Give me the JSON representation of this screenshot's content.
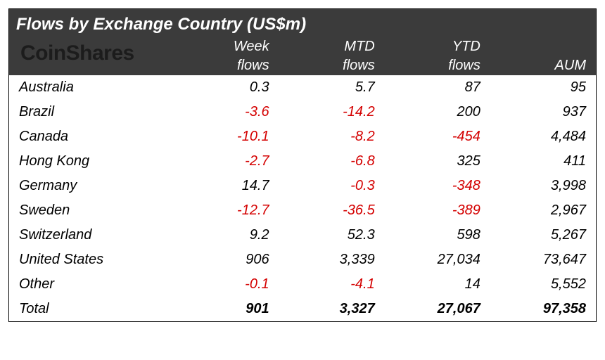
{
  "title": "Flows by Exchange Country (US$m)",
  "brand": "CoinShares",
  "type": "table",
  "colors": {
    "header_bg": "#3b3b3b",
    "header_text": "#ffffff",
    "brand_text": "#1c1c1c",
    "body_text": "#000000",
    "negative": "#d40000",
    "background": "#ffffff",
    "border": "#000000"
  },
  "typography": {
    "title_fontsize_pt": 18,
    "header_fontsize_pt": 15,
    "body_fontsize_pt": 15,
    "brand_fontsize_pt": 22,
    "font_style": "italic",
    "total_font_weight": "bold"
  },
  "columns": [
    {
      "label": "",
      "align": "left",
      "width_pct": 28
    },
    {
      "label_line1": "Week",
      "label_line2": "flows",
      "align": "right",
      "width_pct": 18
    },
    {
      "label_line1": "MTD",
      "label_line2": "flows",
      "align": "right",
      "width_pct": 18
    },
    {
      "label_line1": "YTD",
      "label_line2": "flows",
      "align": "right",
      "width_pct": 18
    },
    {
      "label_line1": "",
      "label_line2": "AUM",
      "align": "right",
      "width_pct": 18
    }
  ],
  "rows": [
    {
      "label": "Australia",
      "week": "0.3",
      "week_neg": false,
      "mtd": "5.7",
      "mtd_neg": false,
      "ytd": "87",
      "ytd_neg": false,
      "aum": "95"
    },
    {
      "label": "Brazil",
      "week": "-3.6",
      "week_neg": true,
      "mtd": "-14.2",
      "mtd_neg": true,
      "ytd": "200",
      "ytd_neg": false,
      "aum": "937"
    },
    {
      "label": "Canada",
      "week": "-10.1",
      "week_neg": true,
      "mtd": "-8.2",
      "mtd_neg": true,
      "ytd": "-454",
      "ytd_neg": true,
      "aum": "4,484"
    },
    {
      "label": "Hong Kong",
      "week": "-2.7",
      "week_neg": true,
      "mtd": "-6.8",
      "mtd_neg": true,
      "ytd": "325",
      "ytd_neg": false,
      "aum": "411"
    },
    {
      "label": "Germany",
      "week": "14.7",
      "week_neg": false,
      "mtd": "-0.3",
      "mtd_neg": true,
      "ytd": "-348",
      "ytd_neg": true,
      "aum": "3,998"
    },
    {
      "label": "Sweden",
      "week": "-12.7",
      "week_neg": true,
      "mtd": "-36.5",
      "mtd_neg": true,
      "ytd": "-389",
      "ytd_neg": true,
      "aum": "2,967"
    },
    {
      "label": "Switzerland",
      "week": "9.2",
      "week_neg": false,
      "mtd": "52.3",
      "mtd_neg": false,
      "ytd": "598",
      "ytd_neg": false,
      "aum": "5,267"
    },
    {
      "label": "United States",
      "week": "906",
      "week_neg": false,
      "mtd": "3,339",
      "mtd_neg": false,
      "ytd": "27,034",
      "ytd_neg": false,
      "aum": "73,647"
    },
    {
      "label": "Other",
      "week": "-0.1",
      "week_neg": true,
      "mtd": "-4.1",
      "mtd_neg": true,
      "ytd": "14",
      "ytd_neg": false,
      "aum": "5,552"
    }
  ],
  "total": {
    "label": "Total",
    "week": "901",
    "mtd": "3,327",
    "ytd": "27,067",
    "aum": "97,358"
  }
}
